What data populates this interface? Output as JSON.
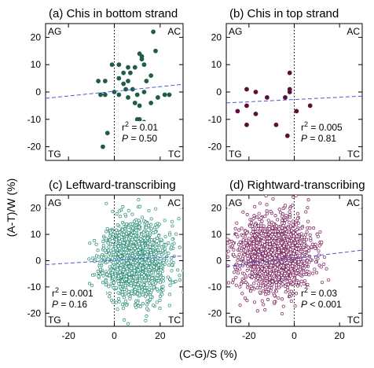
{
  "figure": {
    "ylabel": "(A-T)/W  (%)",
    "xlabel": "(C-G)/S  (%)"
  },
  "chart_data": [
    {
      "type": "scatter",
      "title": "(a) Chis in bottom strand",
      "corners": {
        "tl": "AG",
        "tr": "AC",
        "bl": "TG",
        "br": "TC"
      },
      "stats": {
        "r2": "0.01",
        "p": "0.50"
      },
      "xlim": [
        -30,
        30
      ],
      "ylim": [
        -25,
        25
      ],
      "yticks": [
        -20,
        -10,
        0,
        10,
        20
      ],
      "color": "#1f5c4a",
      "marker": "filled",
      "trend": {
        "x": [
          -30,
          30
        ],
        "y": [
          -2.3,
          2.8
        ]
      },
      "points": {
        "x": [
          17,
          18,
          -1,
          2,
          11,
          12,
          12,
          13,
          6,
          9,
          7,
          4,
          4,
          16,
          -7,
          14,
          6,
          8,
          5,
          0,
          2,
          10,
          13,
          22,
          24,
          19,
          6,
          9,
          -6,
          -4,
          16,
          11,
          13,
          10,
          -3,
          -5,
          -4,
          11,
          2
        ],
        "y": [
          22,
          15,
          10,
          10,
          14,
          13,
          12,
          10,
          9,
          9,
          7,
          7,
          3,
          6,
          4,
          4,
          4,
          1,
          1,
          0,
          -1,
          -1,
          0,
          -1,
          -1,
          -2,
          -2,
          -4,
          -1,
          -1,
          -4,
          -5,
          -11,
          -10,
          -15,
          -20,
          4,
          -10,
          5
        ]
      }
    },
    {
      "type": "scatter",
      "title": "(b) Chis in top strand",
      "corners": {
        "tl": "AG",
        "tr": "AC",
        "bl": "TG",
        "br": "TC"
      },
      "stats": {
        "r2": "0.005",
        "p": "0.81"
      },
      "xlim": [
        -30,
        30
      ],
      "ylim": [
        -25,
        25
      ],
      "yticks": [
        -20,
        -10,
        0,
        10,
        20
      ],
      "color": "#5c1038",
      "marker": "filled",
      "trend": {
        "x": [
          -30,
          30
        ],
        "y": [
          -4,
          -1.5
        ]
      },
      "points": {
        "x": [
          -2,
          -21,
          -17,
          -12,
          -4,
          -21,
          7,
          -17,
          -8,
          -3,
          1,
          -25,
          -21,
          -2,
          -2
        ],
        "y": [
          7,
          1,
          0,
          -2,
          -2,
          -5,
          -5,
          -8,
          -12,
          -16,
          -7,
          -7,
          -12,
          0,
          1
        ]
      }
    },
    {
      "type": "scatter",
      "title": "(c) Leftward-transcribing",
      "corners": {
        "tl": "AG",
        "tr": "AC",
        "bl": "TG",
        "br": "TC"
      },
      "stats": {
        "r2": "0.001",
        "p": "0.16"
      },
      "xlim": [
        -30,
        30
      ],
      "ylim": [
        -25,
        25
      ],
      "xticks": [
        -20,
        0,
        20
      ],
      "yticks": [
        -20,
        -10,
        0,
        10,
        20
      ],
      "color": "#2a8f78",
      "marker": "hollow",
      "trend": {
        "x": [
          -30,
          30
        ],
        "y": [
          -1.5,
          1.8
        ]
      },
      "cloud": {
        "n": 1400,
        "seed": 11,
        "x_mean": 9,
        "x_sd": 7,
        "y_mean": 0,
        "y_sd": 7.5
      }
    },
    {
      "type": "scatter",
      "title": "(d) Rightward-transcribing",
      "corners": {
        "tl": "AG",
        "tr": "AC",
        "bl": "TG",
        "br": "TC"
      },
      "stats": {
        "r2": "0.03",
        "p": "< 0.001"
      },
      "xlim": [
        -30,
        30
      ],
      "ylim": [
        -25,
        25
      ],
      "xticks": [
        -20,
        0,
        20
      ],
      "yticks": [
        -20,
        -10,
        0,
        10,
        20
      ],
      "color": "#7a1f5c",
      "marker": "hollow",
      "trend": {
        "x": [
          -30,
          30
        ],
        "y": [
          -2.2,
          4
        ]
      },
      "cloud": {
        "n": 1600,
        "seed": 23,
        "x_mean": -9,
        "x_sd": 8,
        "y_mean": 2,
        "y_sd": 7
      }
    }
  ]
}
